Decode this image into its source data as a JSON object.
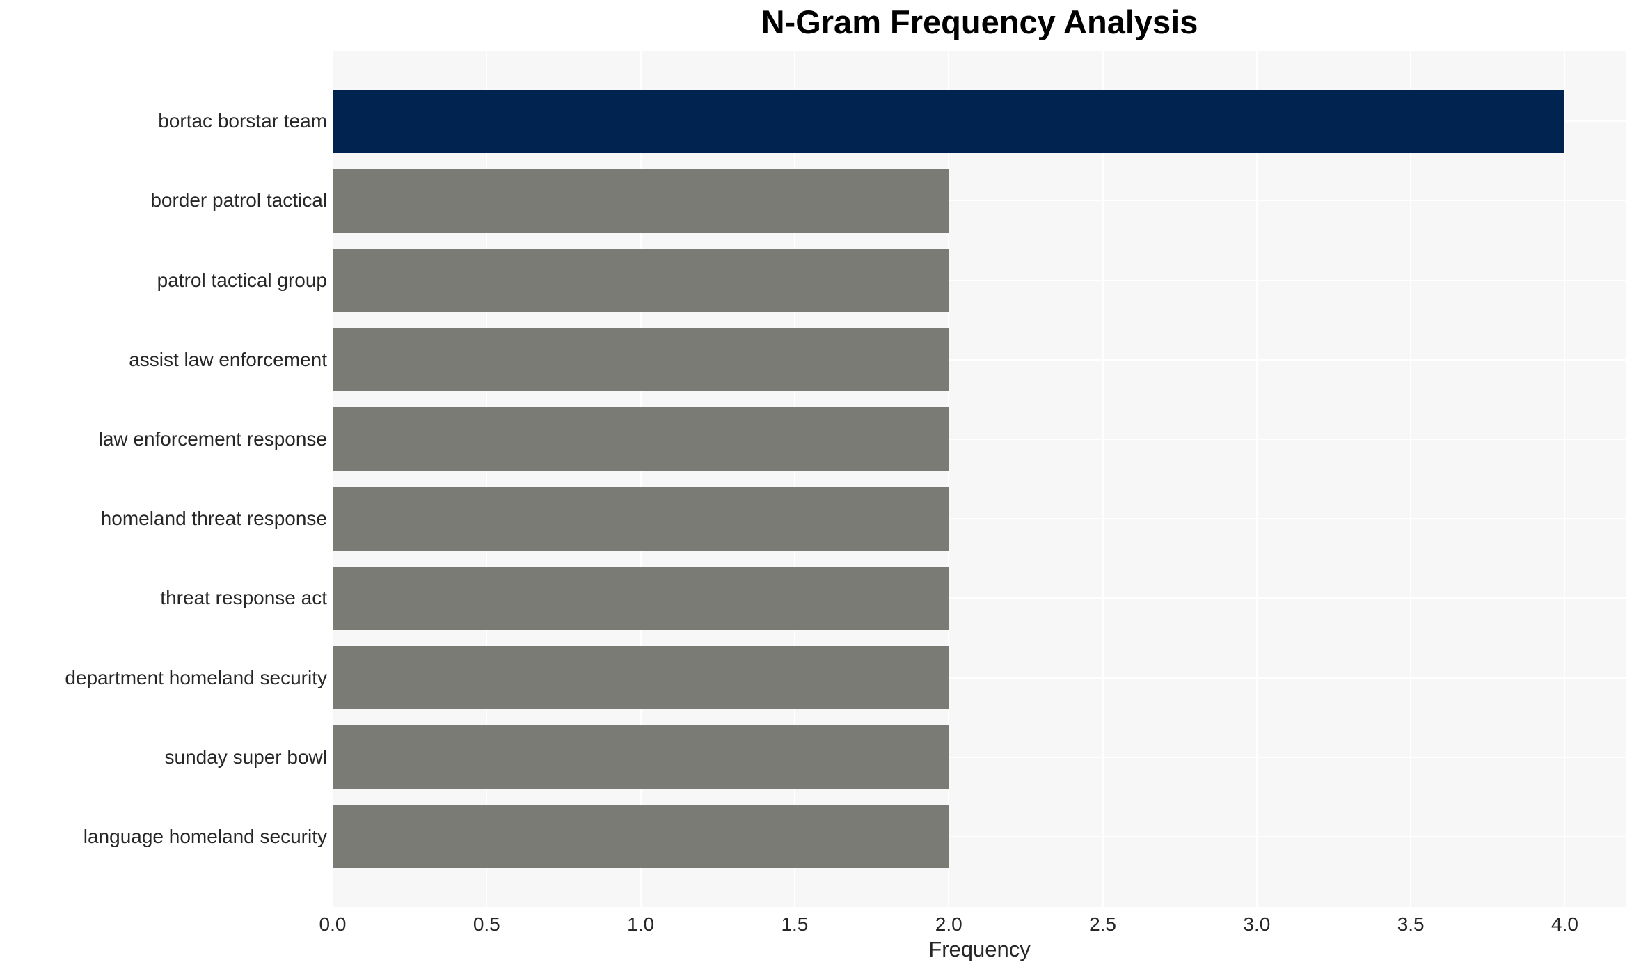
{
  "chart_data": {
    "type": "bar",
    "orientation": "horizontal",
    "title": "N-Gram Frequency Analysis",
    "xlabel": "Frequency",
    "ylabel": "",
    "categories": [
      "bortac borstar team",
      "border patrol tactical",
      "patrol tactical group",
      "assist law enforcement",
      "law enforcement response",
      "homeland threat response",
      "threat response act",
      "department homeland security",
      "sunday super bowl",
      "language homeland security"
    ],
    "values": [
      4,
      2,
      2,
      2,
      2,
      2,
      2,
      2,
      2,
      2
    ],
    "xlim": [
      0,
      4.2
    ],
    "xticks": [
      0,
      0.5,
      1.0,
      1.5,
      2.0,
      2.5,
      3.0,
      3.5,
      4.0
    ],
    "xtick_labels": [
      "0.0",
      "0.5",
      "1.0",
      "1.5",
      "2.0",
      "2.5",
      "3.0",
      "3.5",
      "4.0"
    ],
    "grid": true,
    "legend": false,
    "highlight_index": 0,
    "colors": {
      "highlight_bar": "#00234f",
      "default_bar": "#7b7b76",
      "plot_background": "#f7f7f7",
      "gridline": "#ffffff",
      "tick_text": "#262626",
      "title_text": "#000000"
    }
  }
}
